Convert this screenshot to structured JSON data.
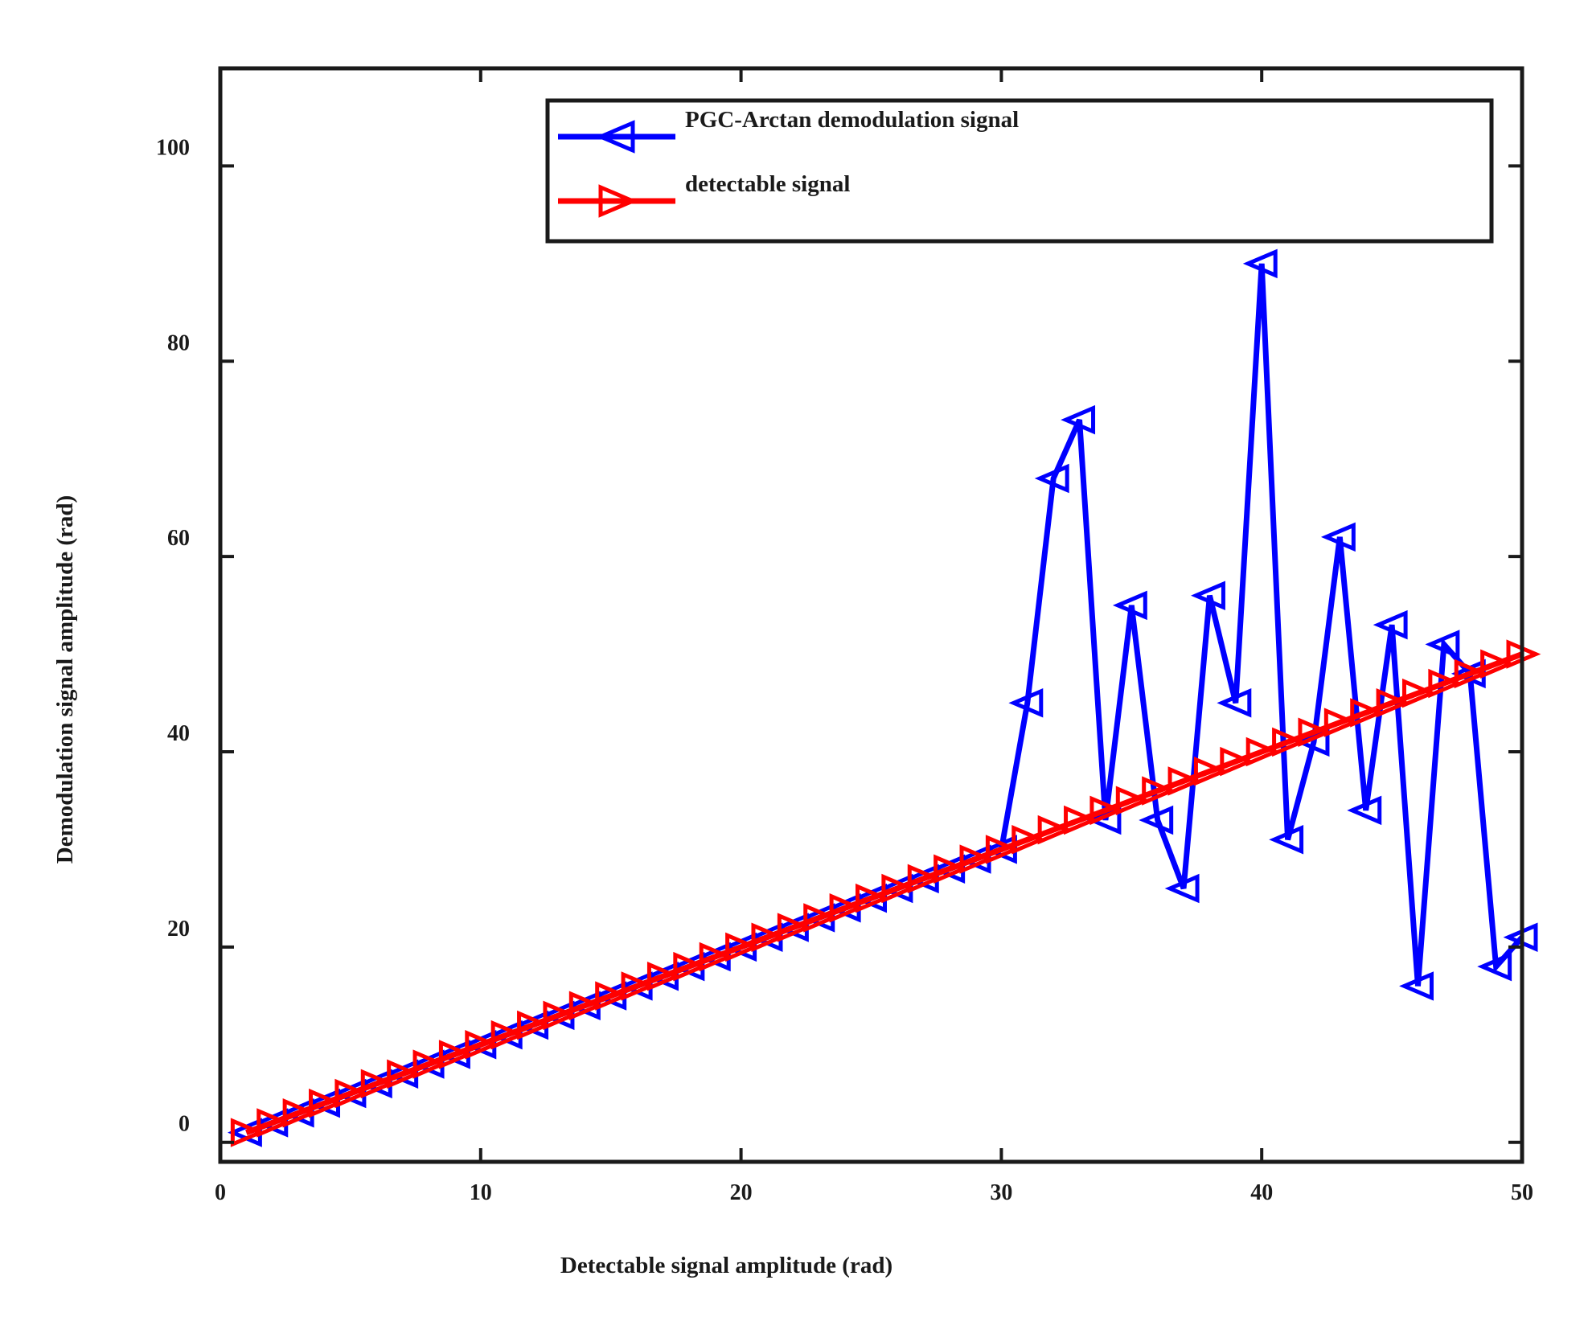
{
  "chart_data": {
    "type": "line",
    "xlabel": "Detectable signal amplitude (rad)",
    "ylabel": "Demodulation signal amplitude (rad)",
    "xlim": [
      0,
      50
    ],
    "ylim": [
      -2,
      110
    ],
    "xticks": [
      0,
      10,
      20,
      30,
      40,
      50
    ],
    "yticks": [
      0,
      20,
      40,
      60,
      80,
      100
    ],
    "xtick_labels": [
      "0",
      "10",
      "20",
      "30",
      "40",
      "50"
    ],
    "ytick_labels": [
      "0",
      "20",
      "40",
      "60",
      "80",
      "100"
    ],
    "grid": false,
    "legend_position": "top-right",
    "x": [
      1,
      2,
      3,
      4,
      5,
      6,
      7,
      8,
      9,
      10,
      11,
      12,
      13,
      14,
      15,
      16,
      17,
      18,
      19,
      20,
      21,
      22,
      23,
      24,
      25,
      26,
      27,
      28,
      29,
      30,
      31,
      32,
      33,
      34,
      35,
      36,
      37,
      38,
      39,
      40,
      41,
      42,
      43,
      44,
      45,
      46,
      47,
      48,
      49,
      50
    ],
    "series": [
      {
        "name": "PGC-Arctan demodulation signal",
        "color": "#0000ff",
        "marker": "triangle-left",
        "values": [
          1,
          2,
          3,
          4,
          5,
          6,
          7,
          8,
          9,
          10,
          11,
          12,
          13,
          14,
          15,
          16,
          17,
          18,
          19,
          20,
          21,
          22,
          23,
          24,
          25,
          26,
          27,
          28,
          29,
          30,
          45,
          68,
          74,
          33,
          55,
          33,
          26,
          56,
          45,
          90,
          31,
          41,
          62,
          34,
          53,
          16,
          51,
          48,
          18,
          21
        ]
      },
      {
        "name": "detectable signal",
        "color": "#ff0000",
        "marker": "triangle-right",
        "values": [
          1,
          2,
          3,
          4,
          5,
          6,
          7,
          8,
          9,
          10,
          11,
          12,
          13,
          14,
          15,
          16,
          17,
          18,
          19,
          20,
          21,
          22,
          23,
          24,
          25,
          26,
          27,
          28,
          29,
          30,
          31,
          32,
          33,
          34,
          35,
          36,
          37,
          38,
          39,
          40,
          41,
          42,
          43,
          44,
          45,
          46,
          47,
          48,
          49,
          50
        ]
      }
    ]
  }
}
